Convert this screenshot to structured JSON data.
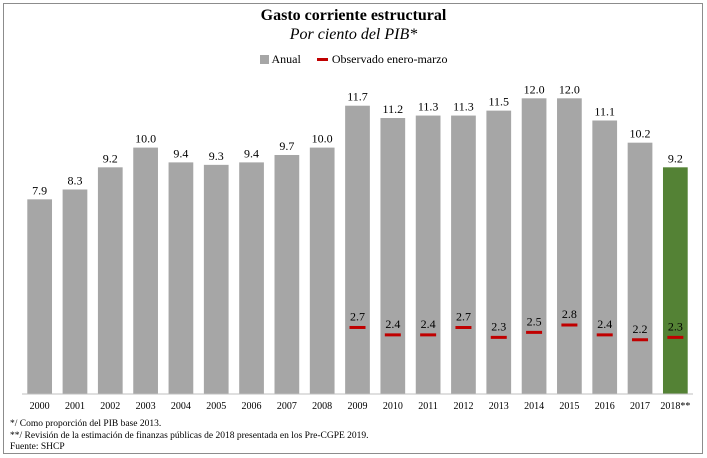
{
  "chart_data": {
    "type": "bar",
    "title": "Gasto corriente estructural",
    "subtitle": "Por ciento del PIB*",
    "categories": [
      "2000",
      "2001",
      "2002",
      "2003",
      "2004",
      "2005",
      "2006",
      "2007",
      "2008",
      "2009",
      "2010",
      "2011",
      "2012",
      "2013",
      "2014",
      "2015",
      "2016",
      "2017",
      "2018**"
    ],
    "series": [
      {
        "name": "Anual",
        "kind": "bar",
        "color": "#a6a6a6",
        "highlight_color": "#548235",
        "highlight_index": 18,
        "values": [
          7.9,
          8.3,
          9.2,
          10.0,
          9.4,
          9.3,
          9.4,
          9.7,
          10.0,
          11.7,
          11.2,
          11.3,
          11.3,
          11.5,
          12.0,
          12.0,
          11.1,
          10.2,
          9.2
        ],
        "labels": [
          "7.9",
          "8.3",
          "9.2",
          "10.0",
          "9.4",
          "9.3",
          "9.4",
          "9.7",
          "10.0",
          "11.7",
          "11.2",
          "11.3",
          "11.3",
          "11.5",
          "12.0",
          "12.0",
          "11.1",
          "10.2",
          "9.2"
        ]
      },
      {
        "name": "Observado enero-marzo",
        "kind": "marker",
        "color": "#c00000",
        "values": [
          null,
          null,
          null,
          null,
          null,
          null,
          null,
          null,
          null,
          2.7,
          2.4,
          2.4,
          2.7,
          2.3,
          2.5,
          2.8,
          2.4,
          2.2,
          2.3
        ],
        "labels": [
          "",
          "",
          "",
          "",
          "",
          "",
          "",
          "",
          "",
          "2.7",
          "2.4",
          "2.4",
          "2.7",
          "2.3",
          "2.5",
          "2.8",
          "2.4",
          "2.2",
          "2.3"
        ]
      }
    ],
    "ylim": [
      0,
      12.5
    ],
    "grid": false,
    "legend_position": "top-center",
    "xlabel": "",
    "ylabel": ""
  },
  "notes": [
    "*/ Como proporción del PIB base 2013.",
    "**/ Revisión de la estimación de finanzas públicas de 2018 presentada en los Pre-CGPE 2019.",
    "Fuente: SHCP"
  ]
}
